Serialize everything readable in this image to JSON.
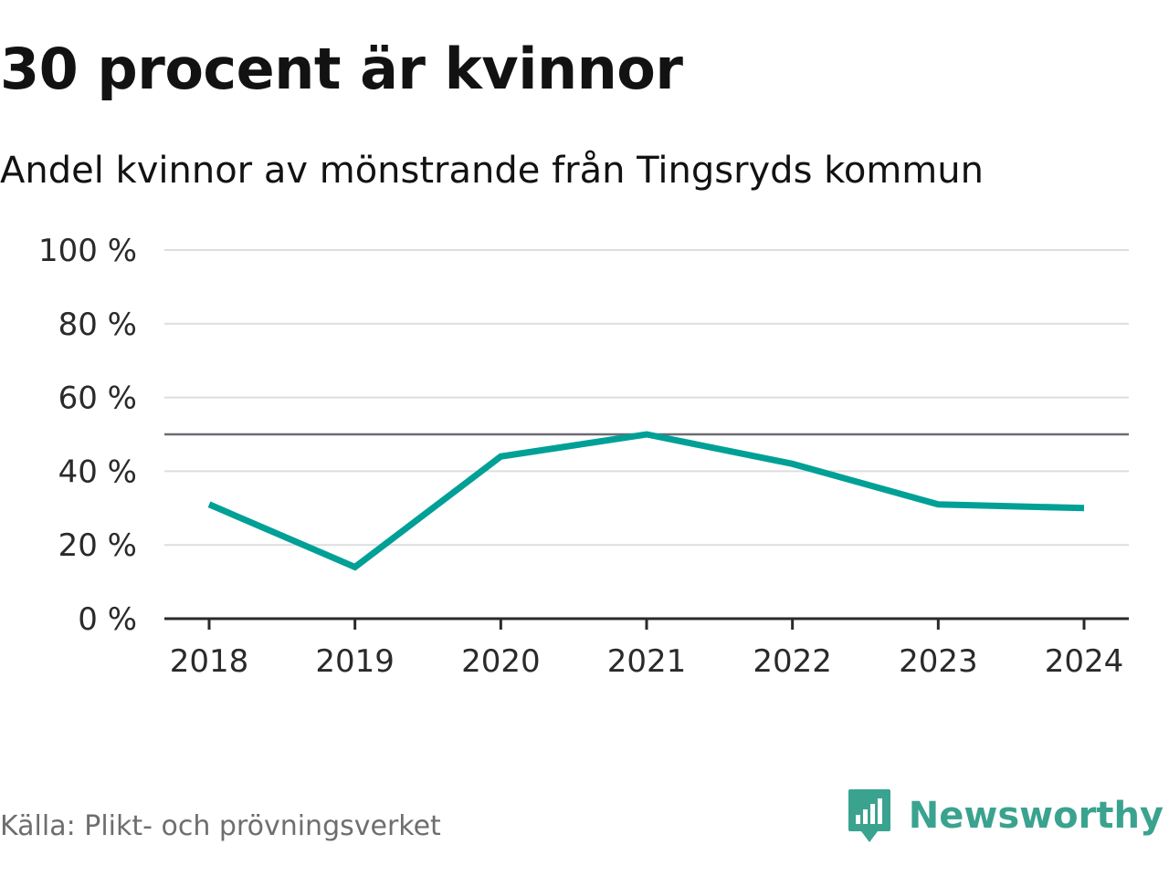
{
  "header": {
    "title": "30 procent är kvinnor",
    "subtitle": "Andel kvinnor av mönstrande från Tingsryds kommun"
  },
  "footer": {
    "source": "Källa: Plikt- och prövningsverket",
    "brand": "Newsworthy"
  },
  "colors": {
    "series": "#00a096",
    "reference_line": "#6b6b73",
    "grid": "#dedede",
    "axis": "#2a2a2a",
    "brand": "#3aa38f"
  },
  "chart_data": {
    "type": "line",
    "title": "30 procent är kvinnor",
    "subtitle": "Andel kvinnor av mönstrande från Tingsryds kommun",
    "xlabel": "",
    "ylabel": "",
    "categories": [
      "2018",
      "2019",
      "2020",
      "2021",
      "2022",
      "2023",
      "2024"
    ],
    "series": [
      {
        "name": "Andel kvinnor",
        "values": [
          31,
          14,
          44,
          50,
          42,
          31,
          30
        ]
      }
    ],
    "ylim": [
      0,
      100
    ],
    "yticks": [
      0,
      20,
      40,
      60,
      80,
      100
    ],
    "ytick_labels": [
      "0 %",
      "20 %",
      "40 %",
      "60 %",
      "80 %",
      "100 %"
    ],
    "reference_line": 50,
    "grid": true,
    "legend": "none"
  }
}
